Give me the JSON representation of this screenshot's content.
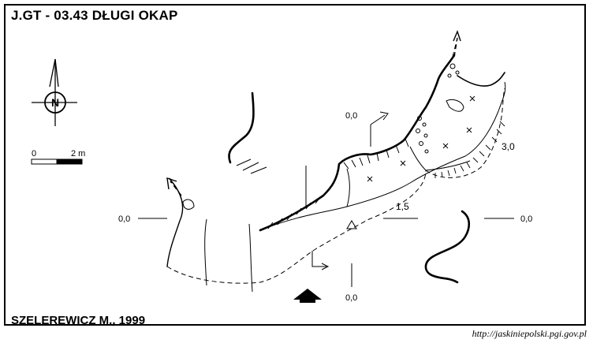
{
  "title": "J.GT - 03.43  DŁUGI OKAP",
  "author": "SZELEREWICZ M., 1999",
  "url": "http://jaskiniepolski.pgi.gov.pl",
  "north_label": "N",
  "scale": {
    "start": "0",
    "end": "2 m"
  },
  "section_labels": {
    "left": "0,0",
    "top": "0,0",
    "right": "0,0",
    "bottom": "0,0"
  },
  "depth_labels": {
    "mid": "1,5",
    "right": "3,0"
  },
  "colors": {
    "ink": "#000000",
    "paper": "#ffffff"
  }
}
